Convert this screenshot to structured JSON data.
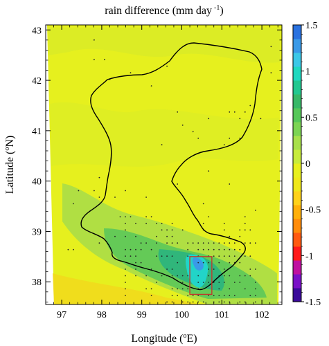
{
  "title": {
    "main": "rain difference (mm day",
    "sup": "-1",
    "tail": ")"
  },
  "xaxis": {
    "label_main": "Longitude (",
    "label_sup": "o",
    "label_tail": "E)",
    "ticks": [
      97,
      98,
      99,
      100,
      101,
      102
    ],
    "range": [
      96.6,
      102.5
    ]
  },
  "yaxis": {
    "label_main": "Latitude (",
    "label_sup": "o",
    "label_tail": "N)",
    "ticks": [
      38,
      39,
      40,
      41,
      42,
      43
    ],
    "range": [
      37.55,
      43.1
    ]
  },
  "colorbar": {
    "ticks": [
      "1.5",
      "1",
      "0.5",
      "0",
      "-0.5",
      "-1",
      "-1.5"
    ],
    "range": [
      -1.5,
      1.5
    ],
    "colors": [
      "#3a0a9a",
      "#7a10c8",
      "#c010a0",
      "#ff1a1a",
      "#ff5a10",
      "#ff8c0a",
      "#ffb00a",
      "#ffd21a",
      "#f0e81a",
      "#e8f01e",
      "#c8ec3c",
      "#a8e04c",
      "#7cd454",
      "#56c85a",
      "#38b868",
      "#22c890",
      "#20d8c0",
      "#3cc8e8",
      "#3a9ae8",
      "#2a72e0"
    ],
    "zero_color": "#e6f01e"
  },
  "box": {
    "lon": [
      100.2,
      100.75
    ],
    "lat": [
      37.75,
      38.5
    ],
    "color": "#c0392b"
  }
}
